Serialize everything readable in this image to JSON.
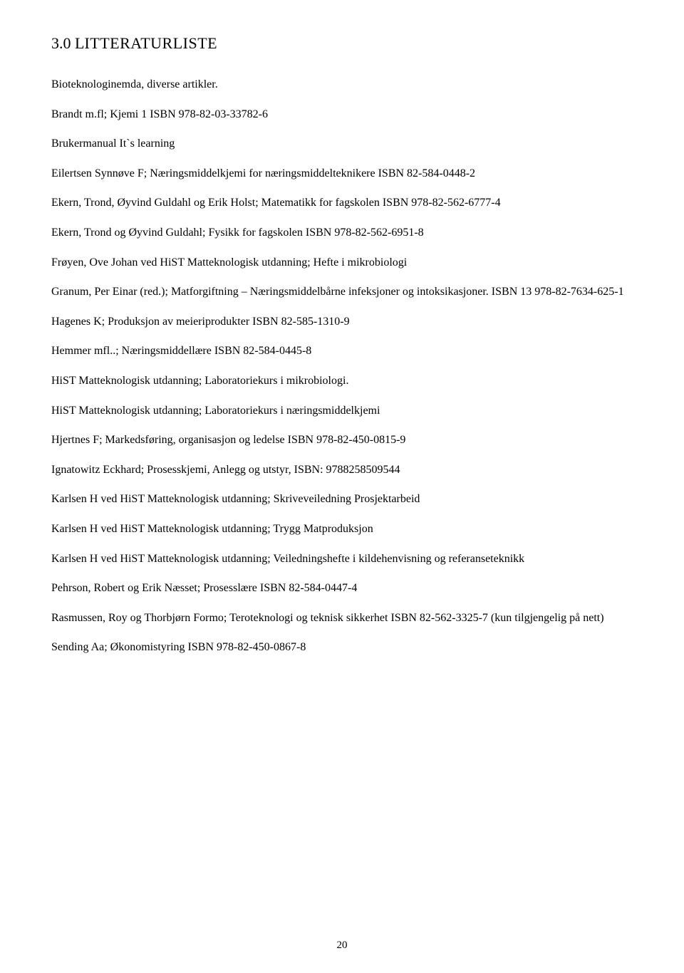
{
  "heading_prefix": "3.0 L",
  "heading_rest": "ITTERATURLISTE",
  "paragraphs": [
    "Bioteknologinemda, diverse artikler.",
    "Brandt m.fl; Kjemi 1 ISBN 978-82-03-33782-6",
    "Brukermanual It`s learning",
    "Eilertsen Synnøve F; Næringsmiddelkjemi for næringsmiddelteknikere ISBN 82-584-0448-2",
    "Ekern, Trond, Øyvind Guldahl og Erik Holst; Matematikk for fagskolen ISBN 978-82-562-6777-4",
    "Ekern, Trond og Øyvind Guldahl; Fysikk for fagskolen ISBN 978-82-562-6951-8",
    "Frøyen, Ove Johan ved HiST Matteknologisk utdanning; Hefte i mikrobiologi",
    "Granum, Per Einar (red.); Matforgiftning – Næringsmiddelbårne infeksjoner og intoksikasjoner. ISBN 13 978-82-7634-625-1",
    "Hagenes K; Produksjon av meieriprodukter ISBN 82-585-1310-9",
    "Hemmer mfl..; Næringsmiddellære ISBN 82-584-0445-8",
    "HiST Matteknologisk utdanning; Laboratoriekurs i mikrobiologi.",
    "HiST Matteknologisk utdanning; Laboratoriekurs i næringsmiddelkjemi",
    "Hjertnes F; Markedsføring, organisasjon og ledelse ISBN 978-82-450-0815-9",
    "Ignatowitz Eckhard; Prosesskjemi, Anlegg og utstyr, ISBN: 9788258509544",
    "Karlsen H ved HiST Matteknologisk utdanning; Skriveveiledning Prosjektarbeid",
    "Karlsen H ved HiST Matteknologisk utdanning; Trygg Matproduksjon",
    "Karlsen H ved HiST Matteknologisk utdanning; Veiledningshefte i kildehenvisning og referanseteknikk",
    "Pehrson, Robert og Erik Næsset; Prosesslære ISBN 82-584-0447-4",
    "Rasmussen, Roy og Thorbjørn Formo; Teroteknologi og teknisk sikkerhet ISBN 82-562-3325-7 (kun tilgjengelig på nett)",
    "Sending Aa; Økonomistyring ISBN 978-82-450-0867-8"
  ],
  "page_number": "20"
}
